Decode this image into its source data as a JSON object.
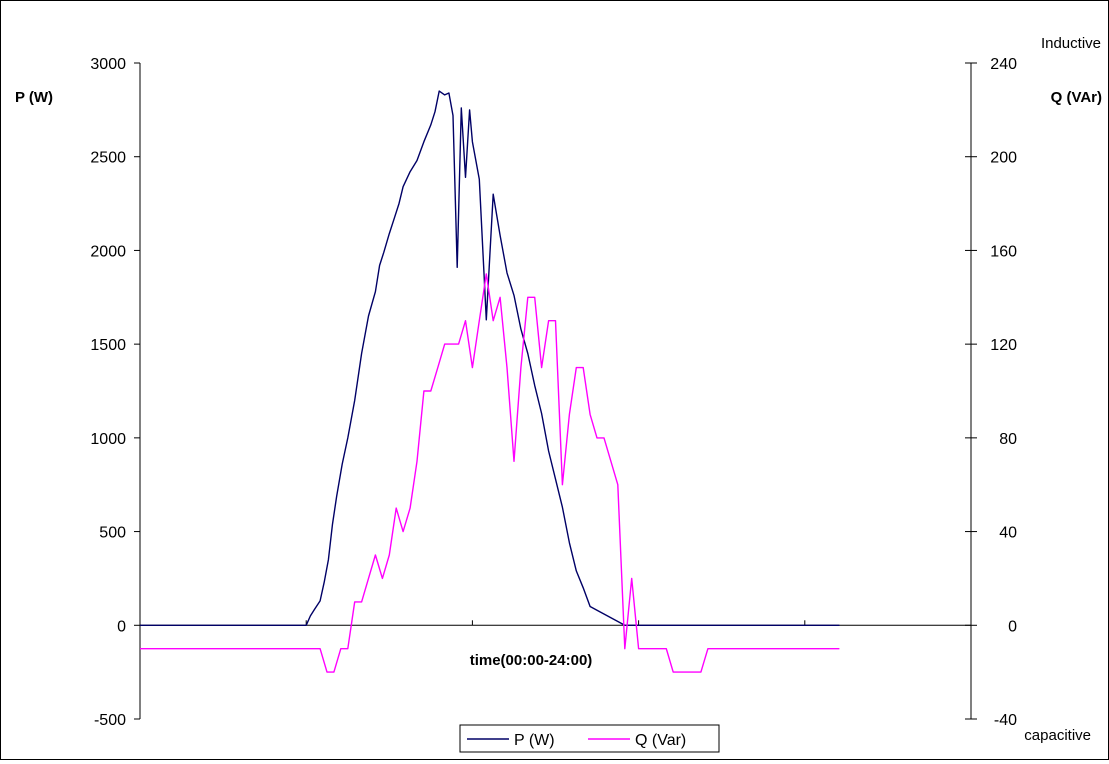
{
  "chart_data": {
    "type": "line",
    "xlabel": "time(00:00-24:00)",
    "left_axis": {
      "label": "P (W)",
      "ylim": [
        -500,
        3000
      ],
      "ticks": [
        3000,
        2500,
        2000,
        1500,
        1000,
        500,
        0,
        -500
      ]
    },
    "right_axis": {
      "label": "Q (VAr)",
      "ylim": [
        -40,
        240
      ],
      "ticks": [
        240,
        200,
        160,
        120,
        80,
        40,
        0,
        -40
      ],
      "top_note": "Inductive",
      "bottom_note": "capacitive"
    },
    "x_ticks": 5,
    "grid": false,
    "legend_position": "bottom-center",
    "series": [
      {
        "name": "P (W)",
        "axis": "left",
        "color": "#000066",
        "x": [
          0.0,
          2.0,
          3.0,
          4.0,
          5.0,
          5.5,
          6.0,
          6.5,
          7.0,
          7.5,
          8.0,
          8.5,
          9.0,
          9.5,
          10.0,
          10.5,
          11.0,
          11.5,
          12.0,
          12.3,
          12.6,
          13.0,
          13.3,
          13.6,
          13.9,
          14.2,
          14.6,
          15.0,
          15.5,
          16.0,
          16.5,
          17.0,
          17.3,
          17.6,
          18.0,
          18.4,
          18.7,
          19.0,
          19.5,
          20.0,
          20.5,
          21.0,
          21.3,
          21.6,
          22.0,
          22.3,
          22.6,
          22.9,
          23.2,
          23.5,
          23.8,
          24.0,
          24.5,
          25.0,
          25.5,
          26.0,
          26.5,
          27.0,
          27.5,
          28.0,
          28.5,
          29.0,
          29.5,
          30.0,
          30.5,
          31.0,
          31.5,
          32.0,
          32.5,
          33.0,
          35.0,
          40.0,
          45.0,
          50.5
        ],
        "values": [
          0,
          0,
          0,
          0,
          0,
          0,
          0,
          0,
          0,
          0,
          0,
          0,
          0,
          0,
          0,
          0,
          0,
          0,
          0,
          50,
          85,
          130,
          230,
          350,
          540,
          690,
          860,
          1000,
          1200,
          1450,
          1650,
          1780,
          1920,
          1990,
          2090,
          2180,
          2250,
          2340,
          2420,
          2480,
          2580,
          2670,
          2740,
          2850,
          2830,
          2840,
          2720,
          1910,
          2760,
          2390,
          2750,
          2580,
          2380,
          1630,
          2300,
          2080,
          1880,
          1760,
          1580,
          1450,
          1280,
          1130,
          930,
          780,
          630,
          440,
          290,
          200,
          100,
          80,
          0,
          0,
          0,
          0
        ]
      },
      {
        "name": "Q (Var)",
        "axis": "right",
        "color": "#ff00ff",
        "x": [
          0.0,
          13.0,
          13.5,
          14.0,
          14.5,
          15.0,
          15.5,
          16.0,
          16.5,
          17.0,
          17.5,
          18.0,
          18.5,
          19.0,
          19.5,
          20.0,
          20.5,
          21.0,
          21.5,
          22.0,
          22.5,
          23.0,
          23.5,
          24.0,
          24.5,
          25.0,
          25.5,
          26.0,
          26.5,
          27.0,
          27.5,
          28.0,
          28.5,
          29.0,
          29.5,
          30.0,
          30.5,
          31.0,
          31.5,
          32.0,
          32.5,
          33.0,
          33.5,
          34.0,
          34.5,
          35.0,
          35.5,
          36.0,
          36.5,
          37.0,
          37.5,
          38.0,
          38.5,
          39.0,
          39.5,
          40.0,
          40.5,
          41.0,
          41.5,
          42.0,
          42.5,
          43.0,
          43.5,
          44.0,
          44.5,
          45.0,
          45.5,
          46.0,
          46.5,
          47.0,
          47.5,
          48.0,
          48.5,
          49.0,
          50.5
        ],
        "values": [
          -10,
          -10,
          -20,
          -20,
          -10,
          -10,
          10,
          10,
          20,
          30,
          20,
          30,
          50,
          40,
          50,
          70,
          100,
          100,
          110,
          120,
          120,
          120,
          130,
          110,
          130,
          150,
          130,
          140,
          110,
          70,
          110,
          140,
          140,
          110,
          130,
          130,
          60,
          90,
          110,
          110,
          90,
          80,
          80,
          70,
          60,
          -10,
          20,
          -10,
          -10,
          -10,
          -10,
          -10,
          -20,
          -20,
          -20,
          -20,
          -20,
          -10,
          -10,
          -10,
          -10,
          -10,
          -10,
          -10,
          -10,
          -10,
          -10,
          -10,
          -10,
          -10,
          -10,
          -10,
          -10,
          -10,
          -10
        ]
      }
    ]
  }
}
